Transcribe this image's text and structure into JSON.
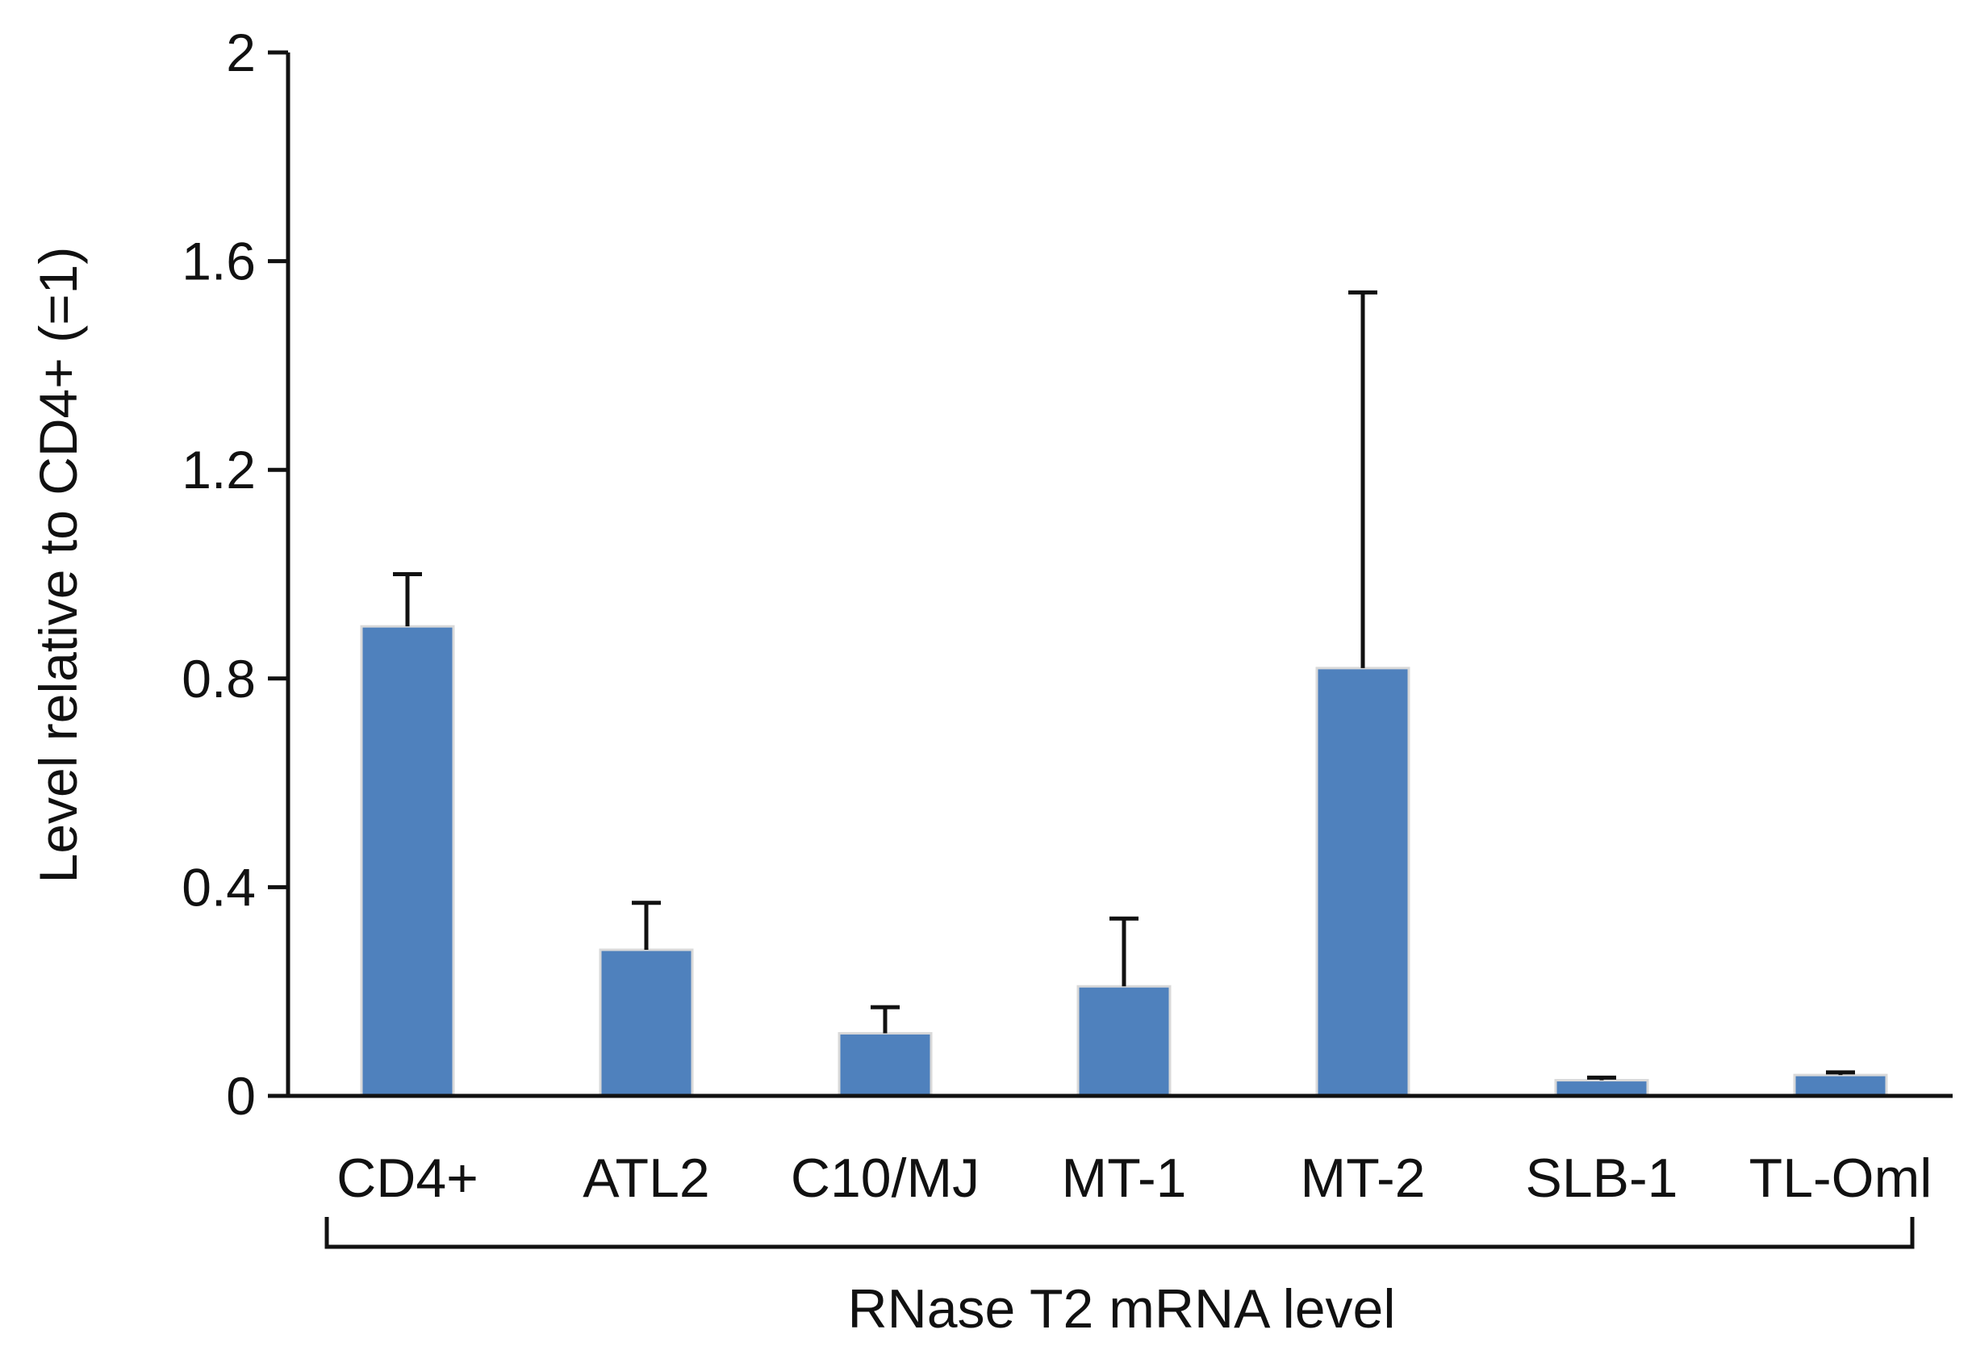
{
  "chart_data": {
    "type": "bar",
    "title": "",
    "xlabel": "RNase T2 mRNA level",
    "ylabel": "Level relative to CD4+ (=1)",
    "ylim": [
      0,
      2
    ],
    "yticks": [
      0,
      0.4,
      0.8,
      1.2,
      1.6,
      2
    ],
    "ytick_labels": [
      "0",
      "0.4",
      "0.8",
      "1.2",
      "1.6",
      "2"
    ],
    "categories": [
      "CD4+",
      "ATL2",
      "C10/MJ",
      "MT-1",
      "MT-2",
      "SLB-1",
      "TL-Oml"
    ],
    "values": [
      0.9,
      0.28,
      0.12,
      0.21,
      0.82,
      0.03,
      0.04
    ],
    "errors": [
      0.1,
      0.09,
      0.05,
      0.13,
      0.72,
      0.005,
      0.005
    ],
    "grid": false,
    "colors": {
      "bar": "#4f81bd",
      "bar_edge": "#d9d9d9",
      "axis": "#111111"
    }
  }
}
